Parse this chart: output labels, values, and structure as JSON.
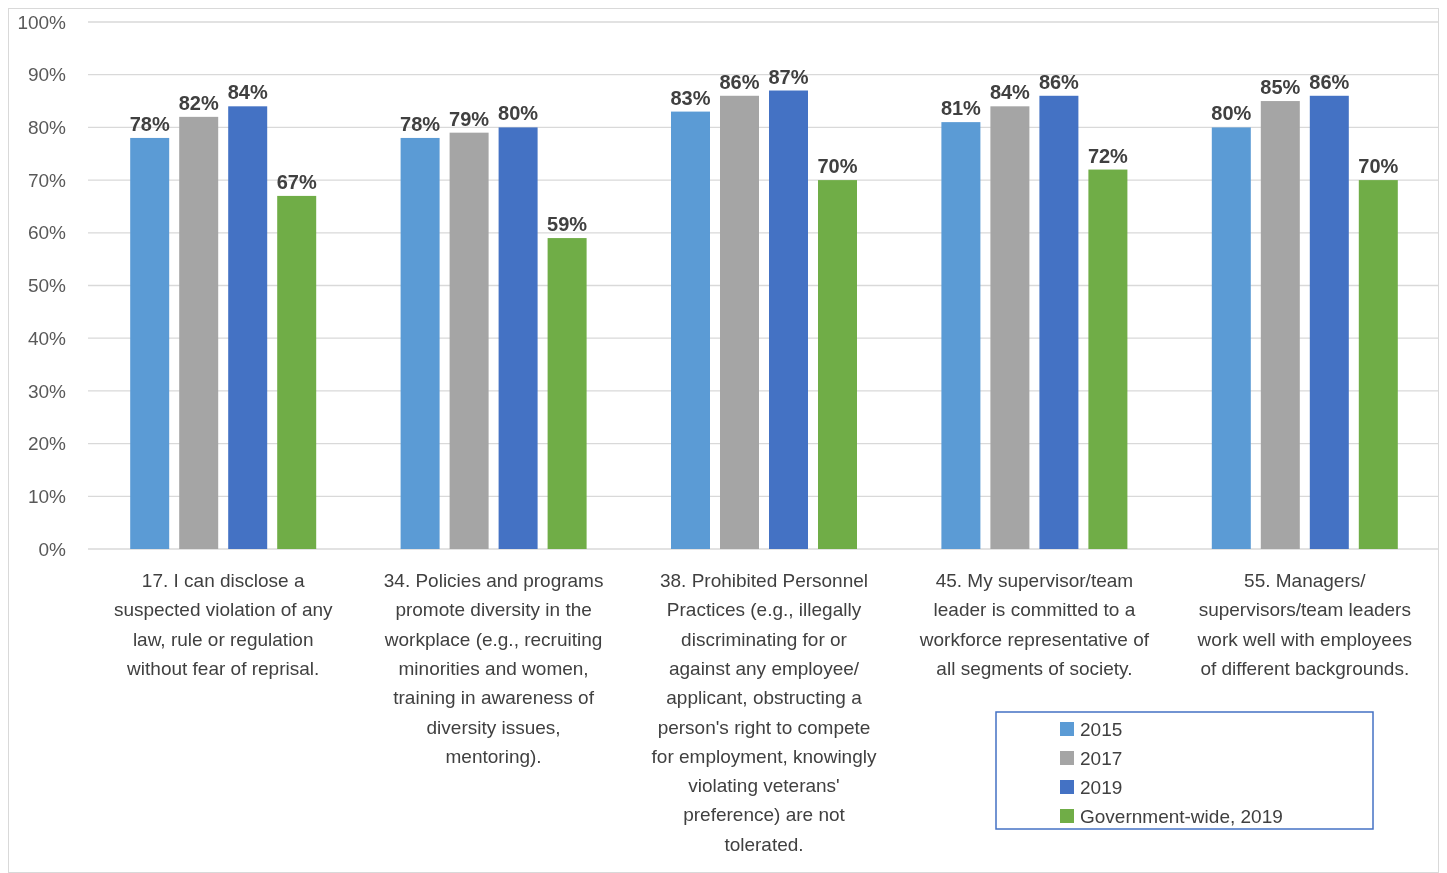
{
  "chart_data": {
    "type": "bar",
    "categories": [
      "17. I can disclose a suspected violation of any law, rule or regulation without fear of reprisal.",
      "34. Policies and programs promote diversity in the workplace (e.g., recruiting minorities and women, training in awareness of diversity issues, mentoring).",
      "38. Prohibited Personnel Practices (e.g., illegally discriminating for or against any employee/ applicant, obstructing a person's right to compete for employment, knowingly violating veterans' preference) are not tolerated.",
      "45. My supervisor/team leader is committed to a workforce representative of all segments of society.",
      "55. Managers/ supervisors/team leaders work well with employees of different backgrounds."
    ],
    "series": [
      {
        "name": "2015",
        "color": "#5b9bd5",
        "values": [
          78,
          78,
          83,
          81,
          80
        ],
        "value_labels": [
          "78%",
          "78%",
          "83%",
          "81%",
          "80%"
        ]
      },
      {
        "name": "2017",
        "color": "#a5a5a5",
        "values": [
          82,
          79,
          86,
          84,
          85
        ],
        "value_labels": [
          "82%",
          "79%",
          "86%",
          "84%",
          "85%"
        ]
      },
      {
        "name": "2019",
        "color": "#4472c4",
        "values": [
          84,
          80,
          87,
          86,
          86
        ],
        "value_labels": [
          "84%",
          "80%",
          "87%",
          "86%",
          "86%"
        ]
      },
      {
        "name": "Government-wide, 2019",
        "color": "#70ad47",
        "values": [
          67,
          59,
          70,
          72,
          70
        ],
        "value_labels": [
          "67%",
          "59%",
          "70%",
          "72%",
          "70%"
        ]
      }
    ],
    "ylim": [
      0,
      100
    ],
    "yticks": [
      {
        "value": 0,
        "label": "0%"
      },
      {
        "value": 10,
        "label": "10%"
      },
      {
        "value": 20,
        "label": "20%"
      },
      {
        "value": 30,
        "label": "30%"
      },
      {
        "value": 40,
        "label": "40%"
      },
      {
        "value": 50,
        "label": "50%"
      },
      {
        "value": 60,
        "label": "60%"
      },
      {
        "value": 70,
        "label": "70%"
      },
      {
        "value": 80,
        "label": "80%"
      },
      {
        "value": 90,
        "label": "90%"
      },
      {
        "value": 100,
        "label": "100%"
      }
    ],
    "grid": "y",
    "legend": "bottom right"
  }
}
